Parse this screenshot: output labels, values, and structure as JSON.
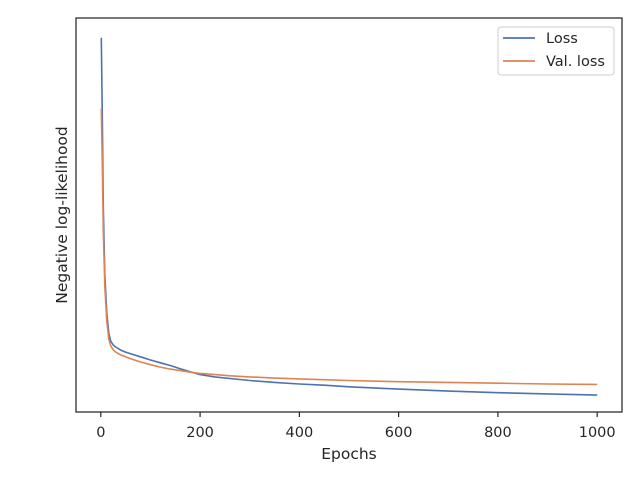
{
  "chart_data": {
    "type": "line",
    "title": "",
    "xlabel": "Epochs",
    "ylabel": "Negative log-likelihood",
    "xlim": [
      -50,
      1050
    ],
    "ylim": [
      0,
      1
    ],
    "y_ticks_shown": false,
    "grid": false,
    "legend_position": "top-right",
    "x_ticks": [
      0,
      200,
      400,
      600,
      800,
      1000
    ],
    "series": [
      {
        "name": "Loss",
        "color": "#4c72b0",
        "x": [
          1,
          3,
          5,
          8,
          12,
          16,
          20,
          25,
          30,
          40,
          50,
          60,
          80,
          100,
          120,
          140,
          160,
          180,
          200,
          230,
          260,
          300,
          350,
          400,
          450,
          500,
          600,
          700,
          800,
          900,
          1000
        ],
        "y": [
          0.95,
          0.75,
          0.52,
          0.35,
          0.25,
          0.2,
          0.18,
          0.17,
          0.165,
          0.157,
          0.152,
          0.148,
          0.14,
          0.132,
          0.125,
          0.118,
          0.11,
          0.102,
          0.095,
          0.089,
          0.085,
          0.08,
          0.075,
          0.071,
          0.068,
          0.064,
          0.058,
          0.053,
          0.049,
          0.046,
          0.043
        ]
      },
      {
        "name": "Val. loss",
        "color": "#dd8452",
        "x": [
          1,
          3,
          5,
          8,
          12,
          16,
          20,
          25,
          30,
          40,
          50,
          60,
          80,
          100,
          120,
          140,
          160,
          180,
          200,
          230,
          260,
          300,
          350,
          400,
          450,
          500,
          600,
          700,
          800,
          900,
          1000
        ],
        "y": [
          0.77,
          0.63,
          0.46,
          0.32,
          0.23,
          0.185,
          0.168,
          0.158,
          0.152,
          0.145,
          0.14,
          0.135,
          0.127,
          0.12,
          0.114,
          0.109,
          0.105,
          0.101,
          0.098,
          0.095,
          0.092,
          0.089,
          0.086,
          0.084,
          0.082,
          0.08,
          0.077,
          0.075,
          0.073,
          0.071,
          0.07
        ]
      }
    ]
  }
}
